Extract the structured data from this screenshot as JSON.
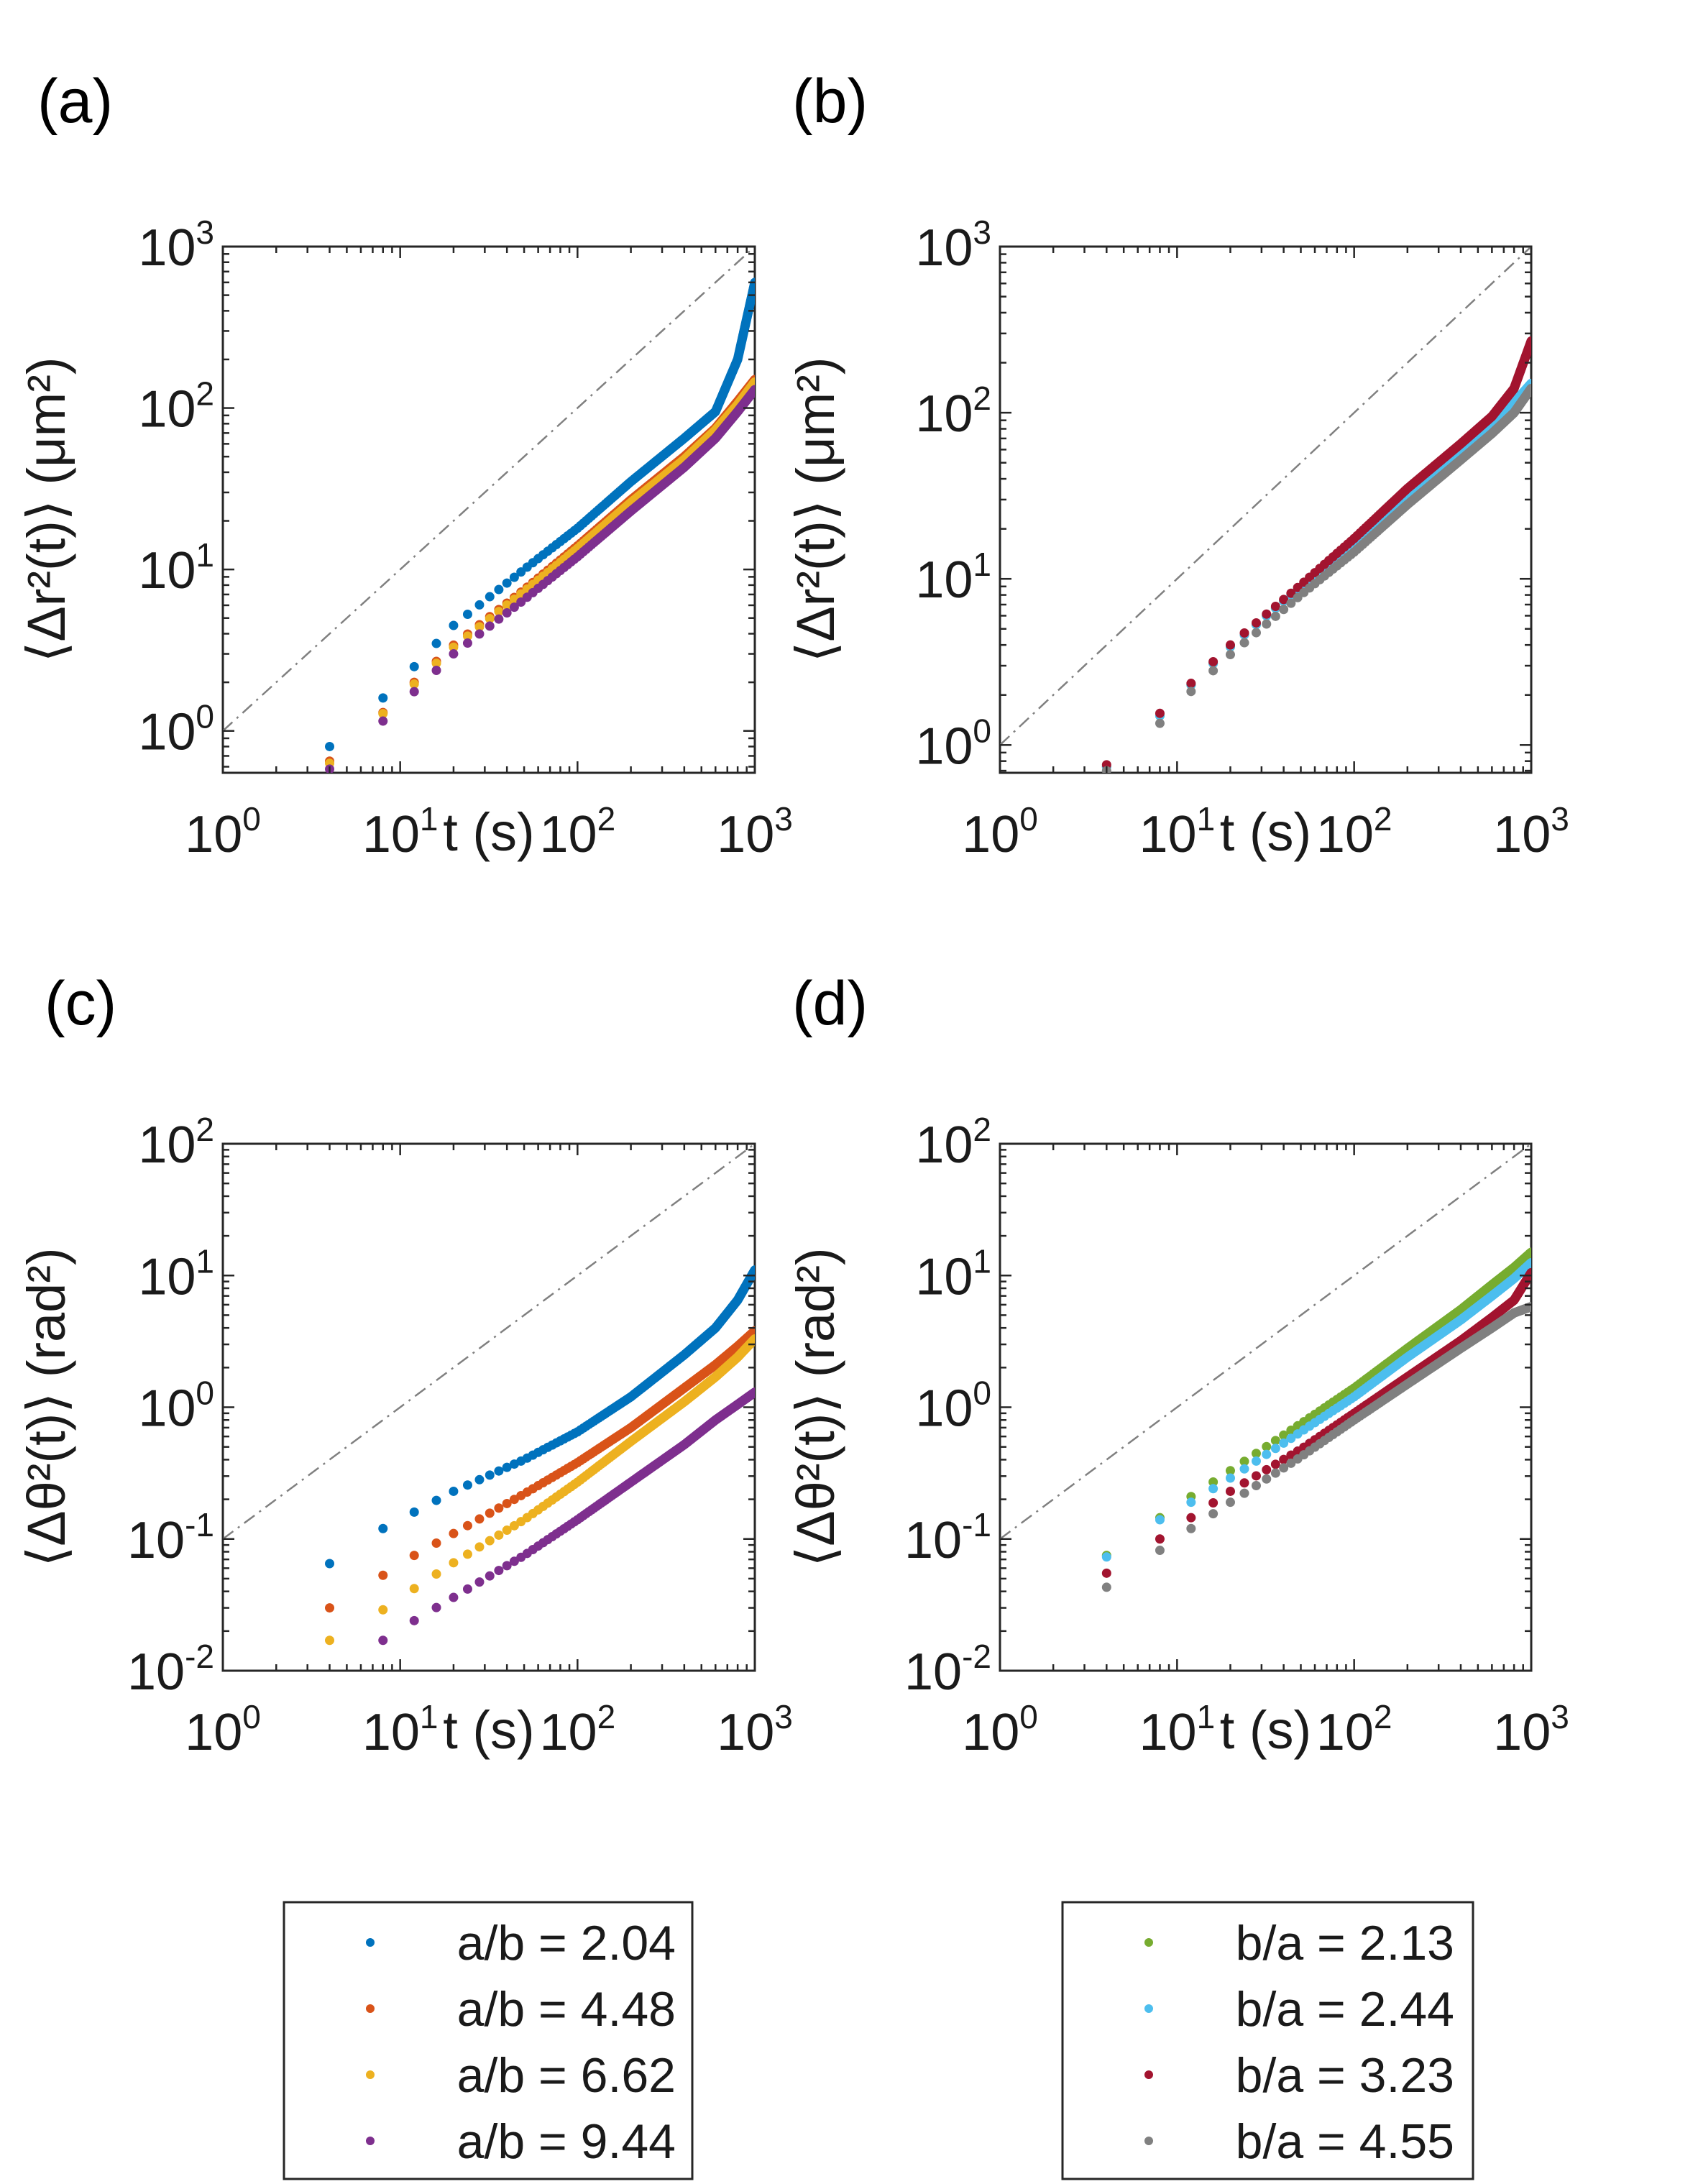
{
  "figure": {
    "panel_labels": [
      "(a)",
      "(b)",
      "(c)",
      "(d)"
    ]
  },
  "chart_data": [
    {
      "id": "a",
      "type": "scatter",
      "scale": "loglog",
      "panel_label": "(a)",
      "xlabel": "t (s)",
      "ylabel": "⟨Δr²(t)⟩ (μm²)",
      "xlim": [
        1,
        1000
      ],
      "ylim": [
        0.55,
        1000
      ],
      "xticks": [
        1,
        10,
        100,
        1000
      ],
      "yticks": [
        1,
        10,
        100,
        1000
      ],
      "xtick_labels": [
        {
          "base": "10",
          "exp": "0"
        },
        {
          "base": "10",
          "exp": "1"
        },
        {
          "base": "10",
          "exp": "2"
        },
        {
          "base": "10",
          "exp": "3"
        }
      ],
      "ytick_labels": [
        {
          "base": "10",
          "exp": "0"
        },
        {
          "base": "10",
          "exp": "1"
        },
        {
          "base": "10",
          "exp": "2"
        },
        {
          "base": "10",
          "exp": "3"
        }
      ],
      "reference_line": {
        "style": "dash-dot",
        "color": "#808080",
        "slope": 1,
        "intercept_at_t1": 1.0
      },
      "series": [
        {
          "name": "a/b = 2.04",
          "color": "#0072BD",
          "anchors": [
            [
              4,
              0.8
            ],
            [
              8,
              1.6
            ],
            [
              12,
              2.5
            ],
            [
              20,
              4.5
            ],
            [
              50,
              10
            ],
            [
              100,
              18
            ],
            [
              200,
              35
            ],
            [
              400,
              65
            ],
            [
              600,
              95
            ],
            [
              800,
              200
            ],
            [
              1000,
              600
            ]
          ]
        },
        {
          "name": "a/b = 4.48",
          "color": "#D95319",
          "anchors": [
            [
              4,
              0.65
            ],
            [
              8,
              1.3
            ],
            [
              12,
              2.0
            ],
            [
              20,
              3.4
            ],
            [
              50,
              7.5
            ],
            [
              100,
              14
            ],
            [
              200,
              27
            ],
            [
              400,
              50
            ],
            [
              600,
              75
            ],
            [
              800,
              110
            ],
            [
              1000,
              150
            ]
          ]
        },
        {
          "name": "a/b = 6.62",
          "color": "#EDB120",
          "anchors": [
            [
              4,
              0.63
            ],
            [
              8,
              1.28
            ],
            [
              12,
              1.95
            ],
            [
              20,
              3.3
            ],
            [
              50,
              7.3
            ],
            [
              100,
              13.5
            ],
            [
              200,
              26
            ],
            [
              400,
              48
            ],
            [
              600,
              73
            ],
            [
              800,
              105
            ],
            [
              1000,
              145
            ]
          ]
        },
        {
          "name": "a/b = 9.44",
          "color": "#7E2F8E",
          "anchors": [
            [
              4,
              0.58
            ],
            [
              8,
              1.15
            ],
            [
              12,
              1.75
            ],
            [
              20,
              3.0
            ],
            [
              50,
              6.5
            ],
            [
              100,
              12
            ],
            [
              200,
              23
            ],
            [
              400,
              43
            ],
            [
              600,
              65
            ],
            [
              800,
              95
            ],
            [
              1000,
              130
            ]
          ]
        }
      ]
    },
    {
      "id": "b",
      "type": "scatter",
      "scale": "loglog",
      "panel_label": "(b)",
      "xlabel": "t (s)",
      "ylabel": "⟨Δr²(t)⟩ (μm²)",
      "xlim": [
        1,
        1000
      ],
      "ylim": [
        0.68,
        1000
      ],
      "xticks": [
        1,
        10,
        100,
        1000
      ],
      "yticks": [
        1,
        10,
        100,
        1000
      ],
      "xtick_labels": [
        {
          "base": "10",
          "exp": "0"
        },
        {
          "base": "10",
          "exp": "1"
        },
        {
          "base": "10",
          "exp": "2"
        },
        {
          "base": "10",
          "exp": "3"
        }
      ],
      "ytick_labels": [
        {
          "base": "10",
          "exp": "0"
        },
        {
          "base": "10",
          "exp": "1"
        },
        {
          "base": "10",
          "exp": "2"
        },
        {
          "base": "10",
          "exp": "3"
        }
      ],
      "reference_line": {
        "style": "dash-dot",
        "color": "#808080",
        "slope": 1,
        "intercept_at_t1": 1.0
      },
      "series": [
        {
          "name": "b/a = 2.13",
          "color": "#77AC30",
          "anchors": [
            [
              4,
              0.74
            ],
            [
              8,
              1.5
            ],
            [
              12,
              2.3
            ],
            [
              20,
              3.9
            ],
            [
              50,
              9
            ],
            [
              100,
              17
            ],
            [
              200,
              33
            ],
            [
              400,
              60
            ],
            [
              600,
              85
            ],
            [
              800,
              110
            ],
            [
              1000,
              145
            ]
          ]
        },
        {
          "name": "b/a = 2.44",
          "color": "#4DBEEE",
          "anchors": [
            [
              4,
              0.74
            ],
            [
              8,
              1.5
            ],
            [
              12,
              2.3
            ],
            [
              20,
              3.9
            ],
            [
              50,
              9
            ],
            [
              100,
              17
            ],
            [
              200,
              33
            ],
            [
              400,
              60
            ],
            [
              600,
              88
            ],
            [
              800,
              115
            ],
            [
              1000,
              150
            ]
          ]
        },
        {
          "name": "b/a = 3.23",
          "color": "#A2142F",
          "anchors": [
            [
              4,
              0.76
            ],
            [
              8,
              1.55
            ],
            [
              12,
              2.35
            ],
            [
              20,
              4.0
            ],
            [
              50,
              9.2
            ],
            [
              100,
              17.5
            ],
            [
              200,
              35
            ],
            [
              400,
              65
            ],
            [
              600,
              95
            ],
            [
              800,
              140
            ],
            [
              1000,
              270
            ]
          ]
        },
        {
          "name": "b/a = 4.55",
          "color": "#808080",
          "anchors": [
            [
              4,
              0.7
            ],
            [
              8,
              1.35
            ],
            [
              12,
              2.1
            ],
            [
              20,
              3.5
            ],
            [
              50,
              8
            ],
            [
              100,
              14.5
            ],
            [
              200,
              28
            ],
            [
              400,
              52
            ],
            [
              600,
              75
            ],
            [
              800,
              100
            ],
            [
              1000,
              140
            ]
          ]
        }
      ]
    },
    {
      "id": "c",
      "type": "scatter",
      "scale": "loglog",
      "panel_label": "(c)",
      "xlabel": "t (s)",
      "ylabel": "⟨Δθ²(t)⟩ (rad²)",
      "xlim": [
        1,
        1000
      ],
      "ylim": [
        0.01,
        100
      ],
      "xticks": [
        1,
        10,
        100,
        1000
      ],
      "yticks": [
        0.01,
        0.1,
        1,
        10,
        100
      ],
      "xtick_labels": [
        {
          "base": "10",
          "exp": "0"
        },
        {
          "base": "10",
          "exp": "1"
        },
        {
          "base": "10",
          "exp": "2"
        },
        {
          "base": "10",
          "exp": "3"
        }
      ],
      "ytick_labels": [
        {
          "base": "10",
          "exp": "-2"
        },
        {
          "base": "10",
          "exp": "-1"
        },
        {
          "base": "10",
          "exp": "0"
        },
        {
          "base": "10",
          "exp": "1"
        },
        {
          "base": "10",
          "exp": "2"
        }
      ],
      "reference_line": {
        "style": "dash-dot",
        "color": "#808080",
        "slope": 1,
        "intercept_at_t1": 0.1
      },
      "series": [
        {
          "name": "a/b = 2.04",
          "color": "#0072BD",
          "anchors": [
            [
              4,
              0.065
            ],
            [
              8,
              0.12
            ],
            [
              12,
              0.16
            ],
            [
              20,
              0.23
            ],
            [
              50,
              0.4
            ],
            [
              100,
              0.65
            ],
            [
              200,
              1.2
            ],
            [
              400,
              2.5
            ],
            [
              600,
              4.0
            ],
            [
              800,
              6.5
            ],
            [
              1000,
              11
            ]
          ]
        },
        {
          "name": "a/b = 4.48",
          "color": "#D95319",
          "anchors": [
            [
              4,
              0.03
            ],
            [
              8,
              0.053
            ],
            [
              12,
              0.075
            ],
            [
              20,
              0.11
            ],
            [
              50,
              0.22
            ],
            [
              100,
              0.38
            ],
            [
              200,
              0.7
            ],
            [
              400,
              1.4
            ],
            [
              600,
              2.1
            ],
            [
              800,
              2.9
            ],
            [
              1000,
              3.8
            ]
          ]
        },
        {
          "name": "a/b = 6.62",
          "color": "#EDB120",
          "anchors": [
            [
              4,
              0.017
            ],
            [
              8,
              0.029
            ],
            [
              12,
              0.042
            ],
            [
              20,
              0.066
            ],
            [
              50,
              0.14
            ],
            [
              100,
              0.27
            ],
            [
              200,
              0.55
            ],
            [
              400,
              1.1
            ],
            [
              600,
              1.7
            ],
            [
              800,
              2.4
            ],
            [
              1000,
              3.3
            ]
          ]
        },
        {
          "name": "a/b = 9.44",
          "color": "#7E2F8E",
          "anchors": [
            [
              8,
              0.017
            ],
            [
              12,
              0.024
            ],
            [
              20,
              0.036
            ],
            [
              50,
              0.075
            ],
            [
              100,
              0.14
            ],
            [
              200,
              0.27
            ],
            [
              400,
              0.52
            ],
            [
              600,
              0.8
            ],
            [
              800,
              1.05
            ],
            [
              1000,
              1.3
            ]
          ]
        }
      ]
    },
    {
      "id": "d",
      "type": "scatter",
      "scale": "loglog",
      "panel_label": "(d)",
      "xlabel": "t (s)",
      "ylabel": "⟨Δθ²(t)⟩ (rad²)",
      "xlim": [
        1,
        1000
      ],
      "ylim": [
        0.01,
        100
      ],
      "xticks": [
        1,
        10,
        100,
        1000
      ],
      "yticks": [
        0.01,
        0.1,
        1,
        10,
        100
      ],
      "xtick_labels": [
        {
          "base": "10",
          "exp": "0"
        },
        {
          "base": "10",
          "exp": "1"
        },
        {
          "base": "10",
          "exp": "2"
        },
        {
          "base": "10",
          "exp": "3"
        }
      ],
      "ytick_labels": [
        {
          "base": "10",
          "exp": "-2"
        },
        {
          "base": "10",
          "exp": "-1"
        },
        {
          "base": "10",
          "exp": "0"
        },
        {
          "base": "10",
          "exp": "1"
        },
        {
          "base": "10",
          "exp": "2"
        }
      ],
      "reference_line": {
        "style": "dash-dot",
        "color": "#808080",
        "slope": 1,
        "intercept_at_t1": 0.1
      },
      "series": [
        {
          "name": "b/a = 2.13",
          "color": "#77AC30",
          "anchors": [
            [
              4,
              0.075
            ],
            [
              8,
              0.145
            ],
            [
              12,
              0.21
            ],
            [
              20,
              0.33
            ],
            [
              50,
              0.75
            ],
            [
              100,
              1.4
            ],
            [
              200,
              2.8
            ],
            [
              400,
              5.5
            ],
            [
              600,
              8.5
            ],
            [
              800,
              11.5
            ],
            [
              1000,
              15
            ]
          ]
        },
        {
          "name": "b/a = 2.44",
          "color": "#4DBEEE",
          "anchors": [
            [
              4,
              0.073
            ],
            [
              8,
              0.14
            ],
            [
              12,
              0.19
            ],
            [
              20,
              0.29
            ],
            [
              50,
              0.65
            ],
            [
              100,
              1.2
            ],
            [
              200,
              2.4
            ],
            [
              400,
              4.6
            ],
            [
              600,
              7.0
            ],
            [
              800,
              9.5
            ],
            [
              1000,
              12.5
            ]
          ]
        },
        {
          "name": "b/a = 3.23",
          "color": "#A2142F",
          "anchors": [
            [
              4,
              0.055
            ],
            [
              8,
              0.1
            ],
            [
              12,
              0.145
            ],
            [
              20,
              0.23
            ],
            [
              50,
              0.48
            ],
            [
              100,
              0.9
            ],
            [
              200,
              1.7
            ],
            [
              400,
              3.2
            ],
            [
              600,
              4.8
            ],
            [
              800,
              6.5
            ],
            [
              1000,
              10.5
            ]
          ]
        },
        {
          "name": "b/a = 4.55",
          "color": "#808080",
          "anchors": [
            [
              4,
              0.043
            ],
            [
              8,
              0.082
            ],
            [
              12,
              0.12
            ],
            [
              20,
              0.19
            ],
            [
              50,
              0.42
            ],
            [
              100,
              0.8
            ],
            [
              200,
              1.5
            ],
            [
              400,
              2.8
            ],
            [
              600,
              4.0
            ],
            [
              800,
              5.2
            ],
            [
              1000,
              5.8
            ]
          ]
        }
      ]
    }
  ],
  "legends": [
    {
      "id": "legend-left",
      "entries": [
        {
          "label": "a/b = 2.04",
          "color": "#0072BD"
        },
        {
          "label": "a/b = 4.48",
          "color": "#D95319"
        },
        {
          "label": "a/b = 6.62",
          "color": "#EDB120"
        },
        {
          "label": "a/b = 9.44",
          "color": "#7E2F8E"
        }
      ]
    },
    {
      "id": "legend-right",
      "entries": [
        {
          "label": "b/a = 2.13",
          "color": "#77AC30"
        },
        {
          "label": "b/a = 2.44",
          "color": "#4DBEEE"
        },
        {
          "label": "b/a = 3.23",
          "color": "#A2142F"
        },
        {
          "label": "b/a = 4.55",
          "color": "#808080"
        }
      ]
    }
  ]
}
